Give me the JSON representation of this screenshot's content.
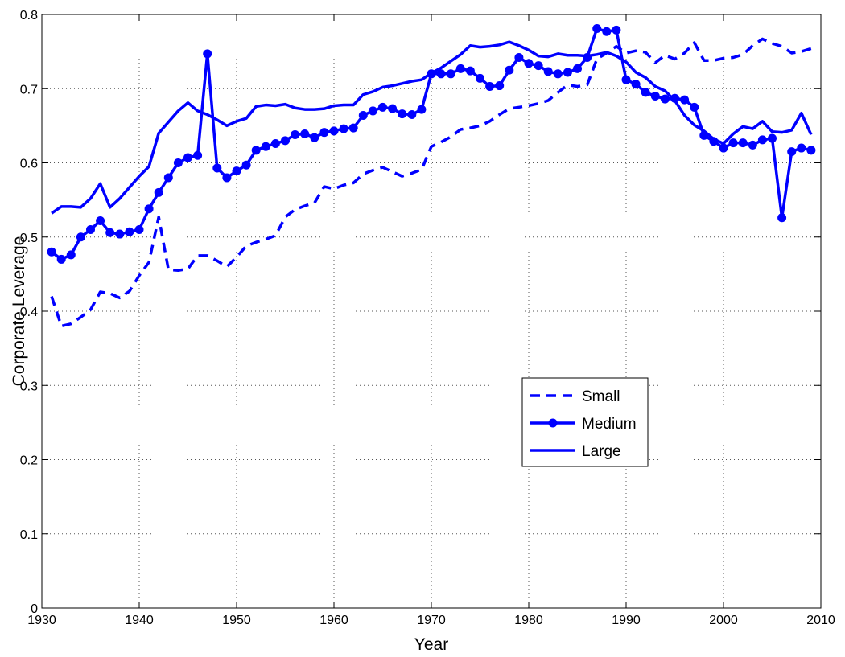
{
  "chart_data": {
    "type": "line",
    "xlabel": "Year",
    "ylabel": "Corporate Leverage",
    "x": [
      1931,
      1932,
      1933,
      1934,
      1935,
      1936,
      1937,
      1938,
      1939,
      1940,
      1941,
      1942,
      1943,
      1944,
      1945,
      1946,
      1947,
      1948,
      1949,
      1950,
      1951,
      1952,
      1953,
      1954,
      1955,
      1956,
      1957,
      1958,
      1959,
      1960,
      1961,
      1962,
      1963,
      1964,
      1965,
      1966,
      1967,
      1968,
      1969,
      1970,
      1971,
      1972,
      1973,
      1974,
      1975,
      1976,
      1977,
      1978,
      1979,
      1980,
      1981,
      1982,
      1983,
      1984,
      1985,
      1986,
      1987,
      1988,
      1989,
      1990,
      1991,
      1992,
      1993,
      1994,
      1995,
      1996,
      1997,
      1998,
      1999,
      2000,
      2001,
      2002,
      2003,
      2004,
      2005,
      2006,
      2007,
      2008,
      2009
    ],
    "series": [
      {
        "name": "Small",
        "color": "#0000ff",
        "linestyle": "dashed",
        "marker": "none",
        "values": [
          0.42,
          0.38,
          0.383,
          0.392,
          0.402,
          0.426,
          0.424,
          0.418,
          0.427,
          0.448,
          0.466,
          0.527,
          0.456,
          0.455,
          0.457,
          0.475,
          0.475,
          0.468,
          0.46,
          0.473,
          0.488,
          0.493,
          0.497,
          0.502,
          0.527,
          0.537,
          0.542,
          0.546,
          0.568,
          0.565,
          0.57,
          0.573,
          0.585,
          0.59,
          0.594,
          0.588,
          0.582,
          0.586,
          0.591,
          0.622,
          0.628,
          0.635,
          0.645,
          0.647,
          0.65,
          0.656,
          0.665,
          0.673,
          0.675,
          0.677,
          0.68,
          0.684,
          0.695,
          0.705,
          0.703,
          0.705,
          0.74,
          0.748,
          0.757,
          0.748,
          0.751,
          0.749,
          0.735,
          0.745,
          0.74,
          0.748,
          0.762,
          0.738,
          0.738,
          0.741,
          0.742,
          0.746,
          0.758,
          0.767,
          0.761,
          0.757,
          0.748,
          0.75,
          0.754
        ]
      },
      {
        "name": "Medium",
        "color": "#0000ff",
        "linestyle": "solid",
        "marker": "circle",
        "values": [
          0.48,
          0.47,
          0.476,
          0.5,
          0.51,
          0.522,
          0.506,
          0.504,
          0.507,
          0.51,
          0.538,
          0.56,
          0.58,
          0.6,
          0.607,
          0.61,
          0.747,
          0.593,
          0.58,
          0.589,
          0.597,
          0.617,
          0.622,
          0.626,
          0.63,
          0.638,
          0.639,
          0.634,
          0.641,
          0.643,
          0.646,
          0.647,
          0.664,
          0.67,
          0.675,
          0.673,
          0.666,
          0.665,
          0.672,
          0.72,
          0.72,
          0.72,
          0.727,
          0.724,
          0.714,
          0.703,
          0.704,
          0.725,
          0.742,
          0.734,
          0.731,
          0.723,
          0.72,
          0.722,
          0.727,
          0.742,
          0.781,
          0.777,
          0.779,
          0.712,
          0.706,
          0.695,
          0.69,
          0.686,
          0.687,
          0.685,
          0.675,
          0.637,
          0.629,
          0.62,
          0.627,
          0.627,
          0.624,
          0.631,
          0.633,
          0.526,
          0.615,
          0.62,
          0.617
        ]
      },
      {
        "name": "Large",
        "color": "#0000ff",
        "linestyle": "solid",
        "marker": "none",
        "values": [
          0.532,
          0.541,
          0.541,
          0.54,
          0.552,
          0.572,
          0.54,
          0.552,
          0.567,
          0.582,
          0.595,
          0.64,
          0.655,
          0.67,
          0.681,
          0.67,
          0.665,
          0.658,
          0.65,
          0.656,
          0.66,
          0.676,
          0.678,
          0.677,
          0.679,
          0.674,
          0.672,
          0.672,
          0.673,
          0.677,
          0.678,
          0.678,
          0.692,
          0.696,
          0.702,
          0.704,
          0.707,
          0.71,
          0.712,
          0.721,
          0.728,
          0.737,
          0.746,
          0.758,
          0.756,
          0.757,
          0.759,
          0.763,
          0.758,
          0.752,
          0.744,
          0.743,
          0.747,
          0.745,
          0.745,
          0.744,
          0.746,
          0.749,
          0.744,
          0.736,
          0.722,
          0.715,
          0.703,
          0.697,
          0.684,
          0.664,
          0.651,
          0.643,
          0.632,
          0.626,
          0.639,
          0.649,
          0.646,
          0.656,
          0.642,
          0.641,
          0.644,
          0.667,
          0.638
        ]
      }
    ],
    "xlim": [
      1930,
      2010
    ],
    "xticks": [
      1930,
      1940,
      1950,
      1960,
      1970,
      1980,
      1990,
      2000,
      2010
    ],
    "ylim": [
      0,
      0.8
    ],
    "yticks": [
      0,
      0.1,
      0.2,
      0.3,
      0.4,
      0.5,
      0.6,
      0.7,
      0.8
    ],
    "grid": true,
    "legend": "center right"
  }
}
